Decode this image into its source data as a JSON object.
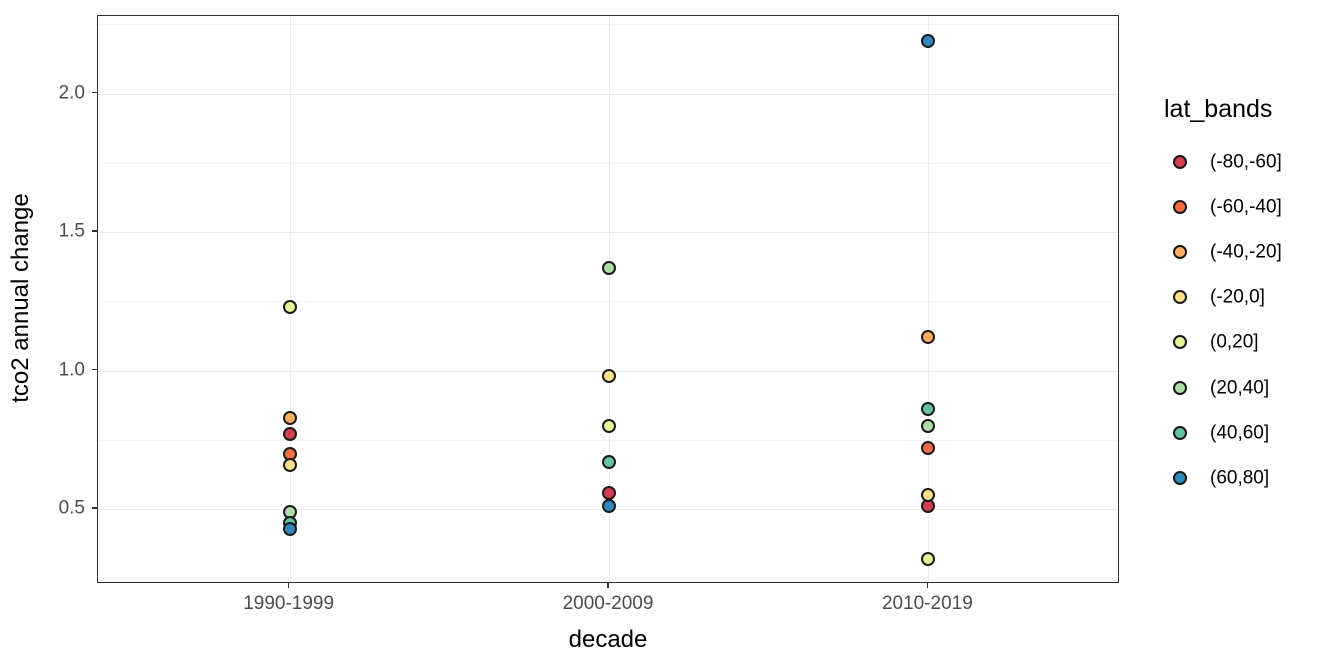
{
  "axes": {
    "x": {
      "title": "decade",
      "categories": [
        "1990-1999",
        "2000-2009",
        "2010-2019"
      ]
    },
    "y": {
      "title": "tco2 annual change",
      "tick_labels": [
        "2.0",
        "1.5",
        "1.0",
        "0.5"
      ],
      "tick_values": [
        2.0,
        1.5,
        1.0,
        0.5
      ]
    }
  },
  "legend": {
    "title": "lat_bands",
    "items": [
      {
        "label": "(-80,-60]",
        "color": "#D53E4F"
      },
      {
        "label": "(-60,-40]",
        "color": "#F46D43"
      },
      {
        "label": "(-40,-20]",
        "color": "#FDAE61"
      },
      {
        "label": "(-20,0]",
        "color": "#FEE08B"
      },
      {
        "label": "(0,20]",
        "color": "#E6F598"
      },
      {
        "label": "(20,40]",
        "color": "#ABDDA4"
      },
      {
        "label": "(40,60]",
        "color": "#66C2A5"
      },
      {
        "label": "(60,80]",
        "color": "#3288BD"
      }
    ]
  },
  "chart_data": {
    "type": "scatter",
    "title": "",
    "xlabel": "decade",
    "ylabel": "tco2 annual change",
    "categories": [
      "1990-1999",
      "2000-2009",
      "2010-2019"
    ],
    "series": [
      {
        "name": "(-80,-60]",
        "color": "#D53E4F",
        "values": [
          0.77,
          0.56,
          0.51
        ]
      },
      {
        "name": "(-60,-40]",
        "color": "#F46D43",
        "values": [
          0.7,
          null,
          0.72
        ]
      },
      {
        "name": "(-40,-20]",
        "color": "#FDAE61",
        "values": [
          0.83,
          null,
          1.12
        ]
      },
      {
        "name": "(-20,0]",
        "color": "#FEE08B",
        "values": [
          0.66,
          0.98,
          0.55
        ]
      },
      {
        "name": "(0,20]",
        "color": "#E6F598",
        "values": [
          1.23,
          0.8,
          0.32
        ]
      },
      {
        "name": "(20,40]",
        "color": "#ABDDA4",
        "values": [
          0.49,
          1.37,
          0.8
        ]
      },
      {
        "name": "(40,60]",
        "color": "#66C2A5",
        "values": [
          0.45,
          0.67,
          0.86
        ]
      },
      {
        "name": "(60,80]",
        "color": "#3288BD",
        "values": [
          0.43,
          0.51,
          2.19
        ]
      }
    ],
    "ylim": [
      0.23,
      2.28
    ],
    "y_major_gridlines": [
      0.5,
      1.0,
      1.5,
      2.0
    ],
    "y_minor_gridlines": [
      0.25,
      0.75,
      1.25,
      1.75,
      2.25
    ],
    "grid": true,
    "legend_position": "right",
    "legend_title": "lat_bands",
    "style": {
      "point_outline": "#1a1a1a",
      "panel_border": "#333333",
      "major_grid": "#ebebeb",
      "minor_grid": "#f4f4f4",
      "tick_label_color": "#4d4d4d"
    }
  }
}
